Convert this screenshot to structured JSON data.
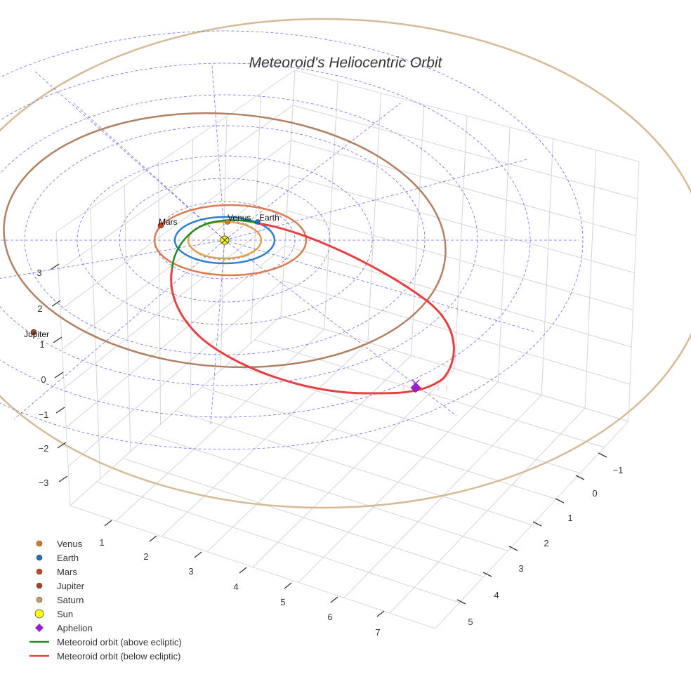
{
  "chart_data": {
    "type": "scatter",
    "projection": "3d",
    "title": "Meteoroid's Heliocentric Orbit",
    "axes": {
      "x_ticks": [
        "1",
        "2",
        "3",
        "4",
        "5",
        "6",
        "7"
      ],
      "y_ticks": [
        "−1",
        "0",
        "1",
        "2",
        "3",
        "4",
        "5"
      ],
      "z_ticks": [
        "3",
        "2",
        "1",
        "0",
        "−1",
        "−2",
        "−3"
      ],
      "grid": true
    },
    "planets": [
      {
        "name": "Venus",
        "color": "#d17e1f",
        "orbit_color": "#e0a350",
        "label": "Venus"
      },
      {
        "name": "Earth",
        "color": "#1f6fc1",
        "orbit_color": "#2c7fd0",
        "label": "Earth"
      },
      {
        "name": "Mars",
        "color": "#c8431b",
        "orbit_color": "#de7a50",
        "label": "Mars"
      },
      {
        "name": "Jupiter",
        "color": "#9b4a24",
        "orbit_color": "#b08060",
        "label": "Jupiter"
      },
      {
        "name": "Saturn",
        "color": "#c89a6a",
        "orbit_color": "#d4bb95",
        "label": ""
      }
    ],
    "sun": {
      "name": "Sun",
      "color": "#ffff00"
    },
    "aphelion": {
      "name": "Aphelion",
      "color": "#9a1fd0"
    },
    "series": [
      {
        "name": "Meteoroid orbit (above ecliptic)",
        "color": "#228b22"
      },
      {
        "name": "Meteoroid orbit (below ecliptic)",
        "color": "#e84040"
      }
    ],
    "ecliptic_grid_color": "#5555dd",
    "legend_position": "bottom-left"
  }
}
